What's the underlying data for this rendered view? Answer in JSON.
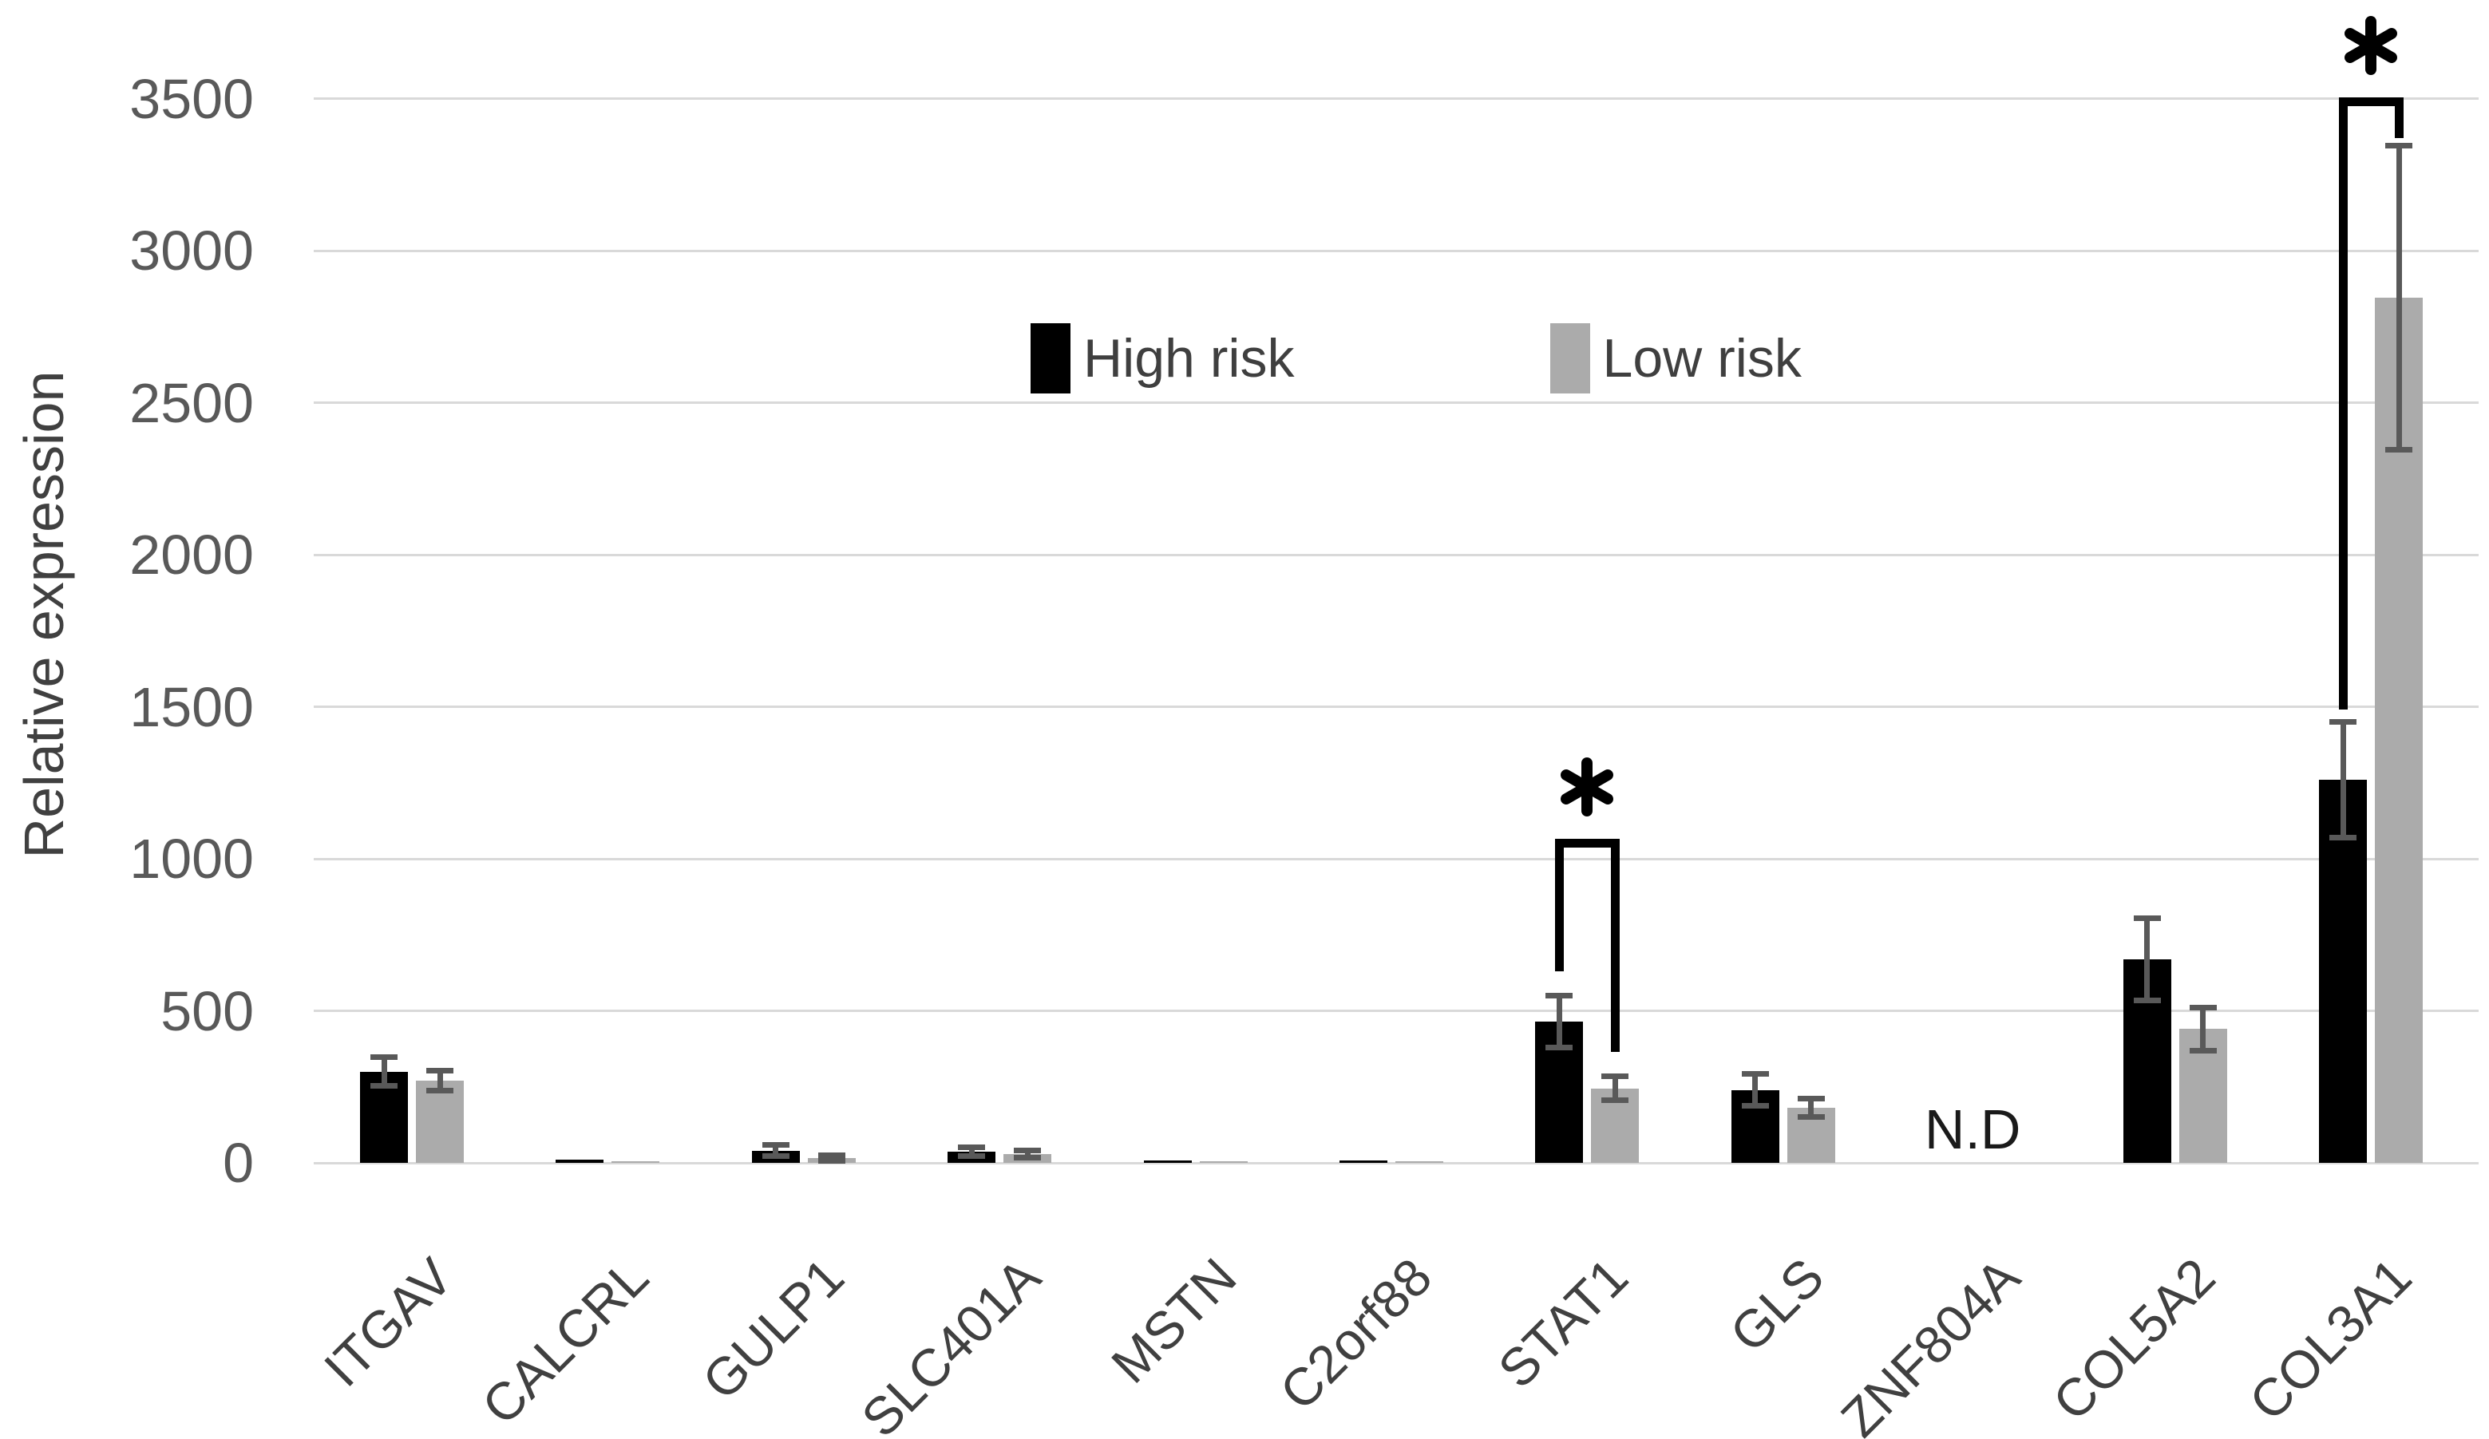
{
  "figure_title": "",
  "legend": {
    "items": [
      {
        "label": "High risk",
        "color": "#000000"
      },
      {
        "label": "Low risk",
        "color": "#ababab"
      }
    ]
  },
  "colors": {
    "gridline": "#d9d9d9",
    "error_bar": "#595959",
    "tick_label": "#595959",
    "axis_title": "#404040",
    "bracket": "#000000"
  },
  "chart_data": {
    "type": "bar",
    "title": "",
    "xlabel": "",
    "ylabel": "Relative expression",
    "ylim": [
      0,
      3500
    ],
    "y_ticks": [
      0,
      500,
      1000,
      1500,
      2000,
      2500,
      3000,
      3500
    ],
    "grid": true,
    "legend_position": "top-center",
    "categories": [
      "ITGAV",
      "CALCRL",
      "GULP1",
      "SLC401A",
      "MSTN",
      "C2orf88",
      "STAT1",
      "GLS",
      "ZNF804A",
      "COL5A2",
      "COL3A1"
    ],
    "series": [
      {
        "name": "High risk",
        "color": "#000000",
        "values": [
          300,
          10,
          40,
          36,
          8,
          8,
          465,
          240,
          null,
          670,
          1260
        ],
        "errors": [
          47,
          null,
          18,
          15,
          null,
          null,
          85,
          52,
          null,
          135,
          190
        ]
      },
      {
        "name": "Low risk",
        "color": "#ababab",
        "values": [
          270,
          5,
          16,
          29,
          4,
          4,
          245,
          180,
          null,
          440,
          2845
        ],
        "errors": [
          33,
          null,
          9,
          12,
          null,
          null,
          40,
          30,
          null,
          70,
          500
        ]
      }
    ],
    "not_detected": {
      "category": "ZNF804A",
      "label": "N.D"
    },
    "significance_brackets": [
      {
        "category": "STAT1",
        "label": "*",
        "top_value": 1065,
        "left_drop_to_value": 630,
        "right_drop_to_value": 365
      },
      {
        "category": "COL3A1",
        "label": "*",
        "top_value": 3505,
        "left_drop_to_value": 1490,
        "right_drop_to_value": 3370
      }
    ]
  }
}
